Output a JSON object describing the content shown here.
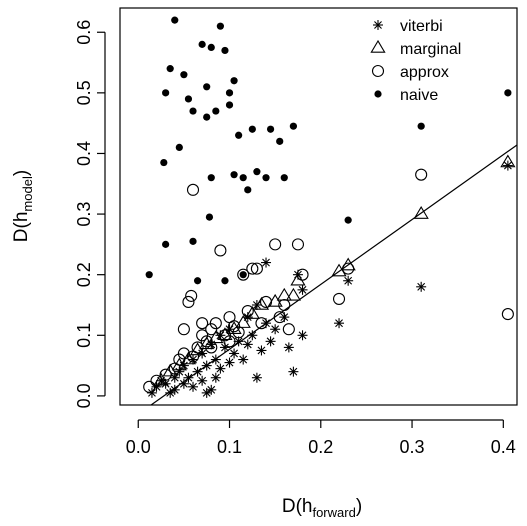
{
  "chart_data": {
    "type": "scatter",
    "xlabel_main": "D(h",
    "xlabel_sub": "forward",
    "xlabel_close": ")",
    "ylabel_main": "D(h",
    "ylabel_sub": "model",
    "ylabel_close": ")",
    "xlim": [
      -0.02,
      0.415
    ],
    "ylim": [
      -0.015,
      0.64
    ],
    "xticks": [
      0.0,
      0.1,
      0.2,
      0.3,
      0.4
    ],
    "xtick_labels": [
      "0.0",
      "0.1",
      "0.2",
      "0.3",
      "0.4"
    ],
    "yticks": [
      0.0,
      0.1,
      0.2,
      0.3,
      0.4,
      0.5,
      0.6
    ],
    "ytick_labels": [
      "0.0",
      "0.1",
      "0.2",
      "0.3",
      "0.4",
      "0.5",
      "0.6"
    ],
    "grid": false,
    "legend_position": "top-right",
    "reference_line": {
      "intercept": -0.03,
      "slope": 1.07
    },
    "series": [
      {
        "name": "viterbi",
        "marker": "asterisk",
        "points": [
          [
            0.015,
            0.005
          ],
          [
            0.02,
            0.015
          ],
          [
            0.025,
            0.025
          ],
          [
            0.03,
            0.02
          ],
          [
            0.035,
            0.005
          ],
          [
            0.04,
            0.01
          ],
          [
            0.04,
            0.03
          ],
          [
            0.045,
            0.04
          ],
          [
            0.05,
            0.02
          ],
          [
            0.05,
            0.05
          ],
          [
            0.055,
            0.03
          ],
          [
            0.06,
            0.06
          ],
          [
            0.06,
            0.015
          ],
          [
            0.065,
            0.04
          ],
          [
            0.07,
            0.07
          ],
          [
            0.07,
            0.025
          ],
          [
            0.075,
            0.005
          ],
          [
            0.075,
            0.05
          ],
          [
            0.08,
            0.085
          ],
          [
            0.08,
            0.01
          ],
          [
            0.085,
            0.03
          ],
          [
            0.085,
            0.06
          ],
          [
            0.09,
            0.1
          ],
          [
            0.09,
            0.045
          ],
          [
            0.095,
            0.08
          ],
          [
            0.1,
            0.055
          ],
          [
            0.1,
            0.11
          ],
          [
            0.105,
            0.07
          ],
          [
            0.11,
            0.09
          ],
          [
            0.115,
            0.06
          ],
          [
            0.12,
            0.13
          ],
          [
            0.12,
            0.085
          ],
          [
            0.125,
            0.1
          ],
          [
            0.13,
            0.03
          ],
          [
            0.13,
            0.15
          ],
          [
            0.135,
            0.075
          ],
          [
            0.14,
            0.12
          ],
          [
            0.14,
            0.22
          ],
          [
            0.145,
            0.09
          ],
          [
            0.15,
            0.11
          ],
          [
            0.16,
            0.13
          ],
          [
            0.165,
            0.08
          ],
          [
            0.17,
            0.04
          ],
          [
            0.175,
            0.2
          ],
          [
            0.18,
            0.1
          ],
          [
            0.18,
            0.175
          ],
          [
            0.22,
            0.12
          ],
          [
            0.23,
            0.19
          ],
          [
            0.31,
            0.18
          ],
          [
            0.405,
            0.38
          ]
        ]
      },
      {
        "name": "marginal",
        "marker": "triangle",
        "points": [
          [
            0.025,
            0.025
          ],
          [
            0.035,
            0.04
          ],
          [
            0.045,
            0.05
          ],
          [
            0.055,
            0.06
          ],
          [
            0.065,
            0.075
          ],
          [
            0.075,
            0.085
          ],
          [
            0.085,
            0.095
          ],
          [
            0.095,
            0.1
          ],
          [
            0.105,
            0.11
          ],
          [
            0.115,
            0.12
          ],
          [
            0.125,
            0.135
          ],
          [
            0.135,
            0.15
          ],
          [
            0.15,
            0.155
          ],
          [
            0.16,
            0.165
          ],
          [
            0.17,
            0.165
          ],
          [
            0.175,
            0.19
          ],
          [
            0.22,
            0.205
          ],
          [
            0.23,
            0.215
          ],
          [
            0.31,
            0.3
          ],
          [
            0.405,
            0.385
          ]
        ]
      },
      {
        "name": "approx",
        "marker": "circle",
        "points": [
          [
            0.012,
            0.015
          ],
          [
            0.02,
            0.025
          ],
          [
            0.03,
            0.035
          ],
          [
            0.04,
            0.045
          ],
          [
            0.045,
            0.06
          ],
          [
            0.05,
            0.07
          ],
          [
            0.055,
            0.155
          ],
          [
            0.058,
            0.165
          ],
          [
            0.06,
            0.34
          ],
          [
            0.065,
            0.08
          ],
          [
            0.07,
            0.1
          ],
          [
            0.07,
            0.12
          ],
          [
            0.075,
            0.09
          ],
          [
            0.08,
            0.11
          ],
          [
            0.085,
            0.12
          ],
          [
            0.09,
            0.24
          ],
          [
            0.095,
            0.1
          ],
          [
            0.1,
            0.09
          ],
          [
            0.1,
            0.13
          ],
          [
            0.105,
            0.115
          ],
          [
            0.11,
            0.105
          ],
          [
            0.115,
            0.2
          ],
          [
            0.12,
            0.14
          ],
          [
            0.125,
            0.21
          ],
          [
            0.13,
            0.21
          ],
          [
            0.135,
            0.12
          ],
          [
            0.14,
            0.155
          ],
          [
            0.15,
            0.25
          ],
          [
            0.155,
            0.13
          ],
          [
            0.16,
            0.15
          ],
          [
            0.165,
            0.11
          ],
          [
            0.175,
            0.25
          ],
          [
            0.18,
            0.2
          ],
          [
            0.22,
            0.16
          ],
          [
            0.23,
            0.21
          ],
          [
            0.31,
            0.365
          ],
          [
            0.405,
            0.135
          ],
          [
            0.05,
            0.11
          ],
          [
            0.06,
            0.065
          ],
          [
            0.08,
            0.08
          ]
        ]
      },
      {
        "name": "naive",
        "marker": "dot",
        "points": [
          [
            0.012,
            0.2
          ],
          [
            0.028,
            0.385
          ],
          [
            0.03,
            0.5
          ],
          [
            0.03,
            0.25
          ],
          [
            0.035,
            0.54
          ],
          [
            0.04,
            0.62
          ],
          [
            0.045,
            0.41
          ],
          [
            0.05,
            0.53
          ],
          [
            0.055,
            0.49
          ],
          [
            0.06,
            0.47
          ],
          [
            0.06,
            0.255
          ],
          [
            0.065,
            0.19
          ],
          [
            0.07,
            0.58
          ],
          [
            0.075,
            0.51
          ],
          [
            0.075,
            0.46
          ],
          [
            0.08,
            0.575
          ],
          [
            0.08,
            0.36
          ],
          [
            0.085,
            0.47
          ],
          [
            0.09,
            0.61
          ],
          [
            0.095,
            0.57
          ],
          [
            0.1,
            0.5
          ],
          [
            0.1,
            0.48
          ],
          [
            0.105,
            0.52
          ],
          [
            0.105,
            0.365
          ],
          [
            0.11,
            0.43
          ],
          [
            0.115,
            0.36
          ],
          [
            0.12,
            0.34
          ],
          [
            0.13,
            0.37
          ],
          [
            0.14,
            0.36
          ],
          [
            0.145,
            0.44
          ],
          [
            0.155,
            0.42
          ],
          [
            0.16,
            0.36
          ],
          [
            0.17,
            0.445
          ],
          [
            0.23,
            0.29
          ],
          [
            0.31,
            0.445
          ],
          [
            0.405,
            0.5
          ],
          [
            0.078,
            0.295
          ],
          [
            0.095,
            0.19
          ],
          [
            0.115,
            0.2
          ],
          [
            0.125,
            0.44
          ]
        ]
      }
    ]
  }
}
